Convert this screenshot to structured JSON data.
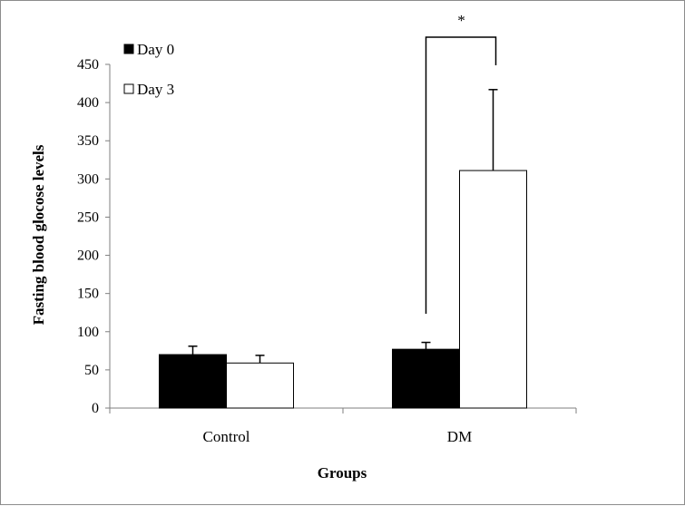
{
  "chart_data": {
    "type": "bar",
    "title": "",
    "xlabel": "Groups",
    "ylabel": "Fasting blood glocose levels",
    "categories": [
      "Control",
      "DM"
    ],
    "series": [
      {
        "name": "Day 0",
        "values": [
          70,
          77
        ],
        "errors": [
          11,
          9
        ],
        "fill": "#000000"
      },
      {
        "name": "Day 3",
        "values": [
          59,
          311
        ],
        "errors": [
          10,
          106
        ],
        "fill": "#ffffff"
      }
    ],
    "ylim": [
      0,
      450
    ],
    "yticks": [
      0,
      50,
      100,
      150,
      200,
      250,
      300,
      350,
      400,
      450
    ],
    "legend_position": "top-left",
    "grid": false,
    "significance": {
      "label": "*",
      "between": "DM Day 0 vs DM Day 3"
    }
  }
}
